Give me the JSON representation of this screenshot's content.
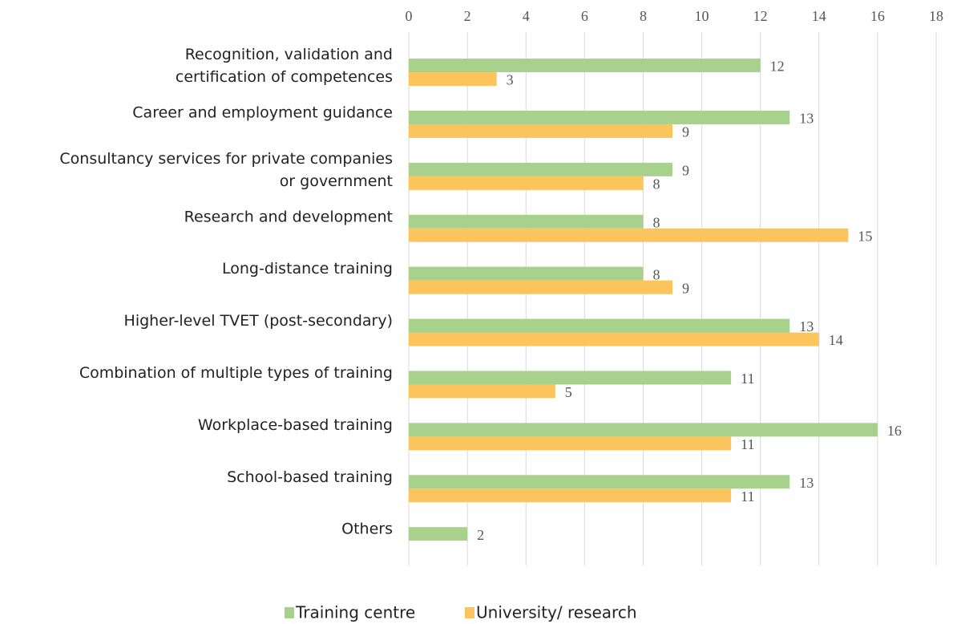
{
  "chart_data": {
    "type": "bar",
    "orientation": "horizontal",
    "categories": [
      "Recognition, validation and\ncertification of competences",
      "Career and employment guidance",
      "Consultancy services for private companies\nor government",
      "Research and development",
      "Long-distance training",
      "Higher-level TVET (post-secondary)",
      "Combination of multiple types of training",
      "Workplace-based training",
      "School-based training",
      "Others"
    ],
    "series": [
      {
        "name": "Training centre",
        "color": "#a9d18e",
        "values": [
          12,
          13,
          9,
          8,
          8,
          13,
          11,
          16,
          13,
          2
        ]
      },
      {
        "name": "University/ research",
        "color": "#fcc45c",
        "values": [
          3,
          9,
          8,
          15,
          9,
          14,
          5,
          11,
          11,
          null
        ]
      }
    ],
    "xlim": [
      0,
      18
    ],
    "xticks": [
      0,
      2,
      4,
      6,
      8,
      10,
      12,
      14,
      16,
      18
    ],
    "grid": true,
    "legend": "bottom"
  }
}
